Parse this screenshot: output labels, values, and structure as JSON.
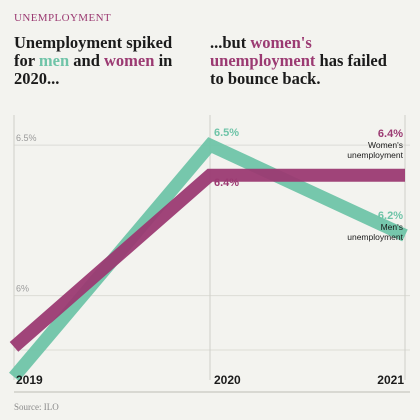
{
  "kicker": "UNEMPLOYMENT",
  "headline_left": {
    "pre": "Unemployment spiked for ",
    "men": "men",
    "mid": " and ",
    "women": "women",
    "post": " in 2020..."
  },
  "headline_right": {
    "pre": "...but ",
    "highlight": "women's unemployment",
    "post": " has failed to bounce back."
  },
  "source": "Source: ILO",
  "colors": {
    "men": "#6fc4a8",
    "women": "#9b3a72",
    "overlap": "#3a3a5a"
  },
  "chart_data": {
    "type": "line",
    "x": [
      "2019",
      "2020",
      "2021"
    ],
    "ylim": [
      5.72,
      6.6
    ],
    "yticks": [
      {
        "value": 6.5,
        "label": "6.5%"
      },
      {
        "value": 6.0,
        "label": "6%"
      }
    ],
    "series": [
      {
        "key": "men",
        "name": "Men's unemployment",
        "values": [
          5.73,
          6.5,
          6.2
        ]
      },
      {
        "key": "women",
        "name": "Women's unemployment",
        "values": [
          5.83,
          6.4,
          6.4
        ]
      }
    ],
    "point_labels": {
      "men_2020": "6.5%",
      "women_2020": "6.4%",
      "women_2021": "6.4%",
      "men_2021": "6.2%"
    },
    "legend_labels": {
      "women": [
        "Women's",
        "unemployment"
      ],
      "men": [
        "Men's",
        "unemployment"
      ]
    }
  }
}
